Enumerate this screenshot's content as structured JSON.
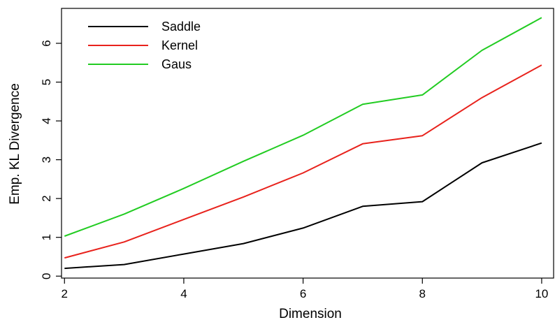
{
  "chart_data": {
    "type": "line",
    "title": "",
    "xlabel": "Dimension",
    "ylabel": "Emp. KL Divergence",
    "x": [
      2,
      3,
      4,
      5,
      6,
      7,
      8,
      9,
      10
    ],
    "xlim": [
      1.95,
      10.2
    ],
    "ylim": [
      -0.05,
      6.9
    ],
    "xticks": [
      2,
      4,
      6,
      8,
      10
    ],
    "yticks": [
      0,
      1,
      2,
      3,
      4,
      5,
      6
    ],
    "grid": false,
    "legend": "top-left",
    "series": [
      {
        "name": "Saddle",
        "color": "#000000",
        "values": [
          0.2,
          0.3,
          0.57,
          0.84,
          1.24,
          1.8,
          1.92,
          2.92,
          3.43
        ]
      },
      {
        "name": "Kernel",
        "color": "#e8221c",
        "values": [
          0.47,
          0.88,
          1.46,
          2.04,
          2.66,
          3.41,
          3.62,
          4.6,
          5.44
        ]
      },
      {
        "name": "Gaus",
        "color": "#22cc22",
        "values": [
          1.03,
          1.6,
          2.26,
          2.96,
          3.63,
          4.43,
          4.67,
          5.82,
          6.66
        ]
      }
    ]
  }
}
